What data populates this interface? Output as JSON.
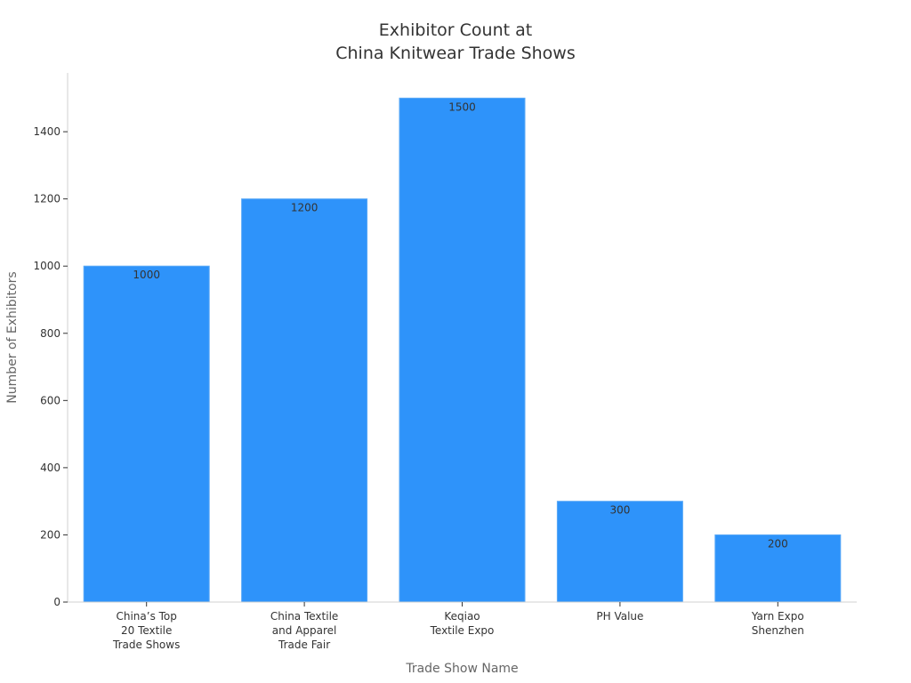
{
  "chart_data": {
    "type": "bar",
    "title_lines": [
      "Exhibitor Count at",
      "China Knitwear Trade Shows"
    ],
    "xlabel": "Trade Show Name",
    "ylabel": "Number of Exhibitors",
    "categories": [
      [
        "China’s Top",
        "20 Textile",
        "Trade Shows"
      ],
      [
        "China Textile",
        "and Apparel",
        "Trade Fair"
      ],
      [
        "Keqiao",
        "Textile Expo"
      ],
      [
        "PH Value"
      ],
      [
        "Yarn Expo",
        "Shenzhen"
      ]
    ],
    "values": [
      1000,
      1200,
      1500,
      300,
      200
    ],
    "data_labels": [
      "1000",
      "1200",
      "1500",
      "300",
      "200"
    ],
    "ylim": [
      0,
      1575
    ],
    "yticks": [
      0,
      200,
      400,
      600,
      800,
      1000,
      1200,
      1400
    ],
    "grid": false,
    "bar_color": "#2e93fa",
    "axis_color": "#d0d0d0"
  }
}
